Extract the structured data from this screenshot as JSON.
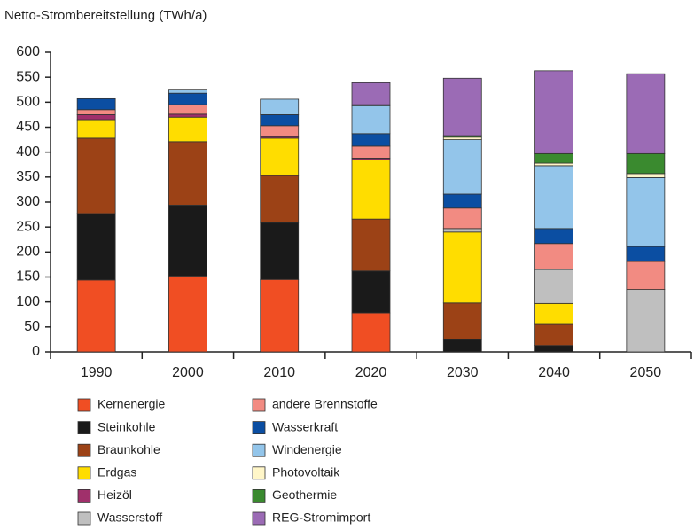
{
  "chart_data": {
    "type": "stacked_bar",
    "title": "Netto-Strombereitstellung (TWh/a)",
    "categories": [
      "1990",
      "2000",
      "2010",
      "2020",
      "2030",
      "2040",
      "2050"
    ],
    "ylim": [
      0,
      600
    ],
    "yticks": [
      0,
      50,
      100,
      150,
      200,
      250,
      300,
      350,
      400,
      450,
      500,
      550,
      600
    ],
    "series": [
      {
        "name": "Kernenergie",
        "color": "#f04e23",
        "values": [
          144,
          152,
          145,
          78,
          0,
          0,
          0
        ]
      },
      {
        "name": "Steinkohle",
        "color": "#1a1a1a",
        "values": [
          133,
          142,
          114,
          84,
          25,
          13,
          0
        ]
      },
      {
        "name": "Braunkohle",
        "color": "#9c4216",
        "values": [
          151,
          127,
          94,
          104,
          73,
          42,
          0
        ]
      },
      {
        "name": "Erdgas",
        "color": "#ffdd00",
        "values": [
          37,
          49,
          75,
          119,
          142,
          42,
          0
        ]
      },
      {
        "name": "Heizöl",
        "color": "#a0306b",
        "values": [
          10,
          6,
          3,
          3,
          0,
          0,
          0
        ]
      },
      {
        "name": "Wasserstoff",
        "color": "#bfbfbf",
        "values": [
          0,
          0,
          0,
          0,
          7,
          68,
          125
        ]
      },
      {
        "name": "andere Brennstoffe",
        "color": "#f28b82",
        "values": [
          10,
          19,
          22,
          24,
          41,
          52,
          56
        ]
      },
      {
        "name": "Wasserkraft",
        "color": "#0b4ea2",
        "values": [
          22,
          23,
          22,
          25,
          28,
          30,
          30
        ]
      },
      {
        "name": "Windenergie",
        "color": "#93c5ea",
        "values": [
          0,
          8,
          31,
          56,
          109,
          126,
          138
        ]
      },
      {
        "name": "Photovoltaik",
        "color": "#fff6c8",
        "values": [
          0,
          0,
          0,
          2,
          5,
          5,
          8
        ]
      },
      {
        "name": "Geothermie",
        "color": "#3a8a2f",
        "values": [
          0,
          0,
          0,
          0,
          3,
          19,
          40
        ]
      },
      {
        "name": "REG-Stromimport",
        "color": "#9b6bb5",
        "values": [
          0,
          0,
          0,
          44,
          115,
          166,
          160
        ]
      }
    ]
  }
}
